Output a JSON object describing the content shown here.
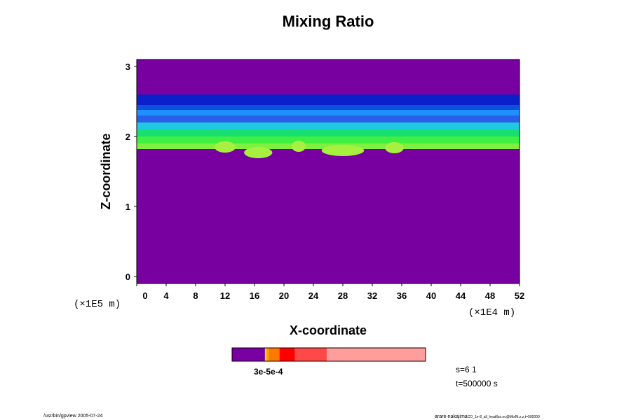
{
  "chart_data": {
    "type": "heatmap",
    "title": "Mixing Ratio",
    "xlabel": "X-coordinate",
    "ylabel": "Z-coordinate",
    "x_unit": "(×1E4 m)",
    "y_unit": "(×1E5 m)",
    "xlim": [
      0,
      52
    ],
    "ylim": [
      -0.1,
      3.1
    ],
    "x_ticks": [
      "0",
      "4",
      "8",
      "12",
      "16",
      "20",
      "24",
      "28",
      "32",
      "36",
      "40",
      "44",
      "48",
      "52"
    ],
    "y_ticks": [
      "0",
      "1",
      "2",
      "3"
    ],
    "field_description": "background purple; layered mixing-ratio band between z≈1.8 and z≈2.6 (×1E5 m), highest values near z≈1.8-2.0",
    "band_layers": [
      {
        "z_from": 2.45,
        "z_to": 2.6,
        "color": "#0a20c8"
      },
      {
        "z_from": 2.38,
        "z_to": 2.45,
        "color": "#1050e0"
      },
      {
        "z_from": 2.3,
        "z_to": 2.38,
        "color": "#1e90ff"
      },
      {
        "z_from": 2.2,
        "z_to": 2.3,
        "color": "#2a60e8"
      },
      {
        "z_from": 2.1,
        "z_to": 2.2,
        "color": "#20c8e0"
      },
      {
        "z_from": 2.0,
        "z_to": 2.1,
        "color": "#18e070"
      },
      {
        "z_from": 1.9,
        "z_to": 2.0,
        "color": "#40f040"
      },
      {
        "z_from": 1.82,
        "z_to": 1.9,
        "color": "#80f040"
      }
    ],
    "colorbar": {
      "segments": [
        {
          "color": "#7800a0",
          "fraction": 0.17
        },
        {
          "color": "#f0d000",
          "fraction": 0.008
        },
        {
          "color": "#ffa000",
          "fraction": 0.012
        },
        {
          "color": "#ff7800",
          "fraction": 0.055
        },
        {
          "color": "#ff0000",
          "fraction": 0.08
        },
        {
          "color": "#ff4848",
          "fraction": 0.165
        },
        {
          "color": "#ff9c9c",
          "fraction": 0.51
        }
      ],
      "label": "3e-5e-4"
    },
    "colors": {
      "background": "#7800a0",
      "frame": "#000000"
    }
  },
  "annotations": {
    "s_label": "s=6 1",
    "t_label": "t=500000 s"
  },
  "footer": {
    "left": "/usr/bin/gpview 2005-07-24",
    "right": "arare-nakajima",
    "right_small": "CO_1e-8_all_heatflux.nc@MixRt,x,z,t=500000"
  }
}
